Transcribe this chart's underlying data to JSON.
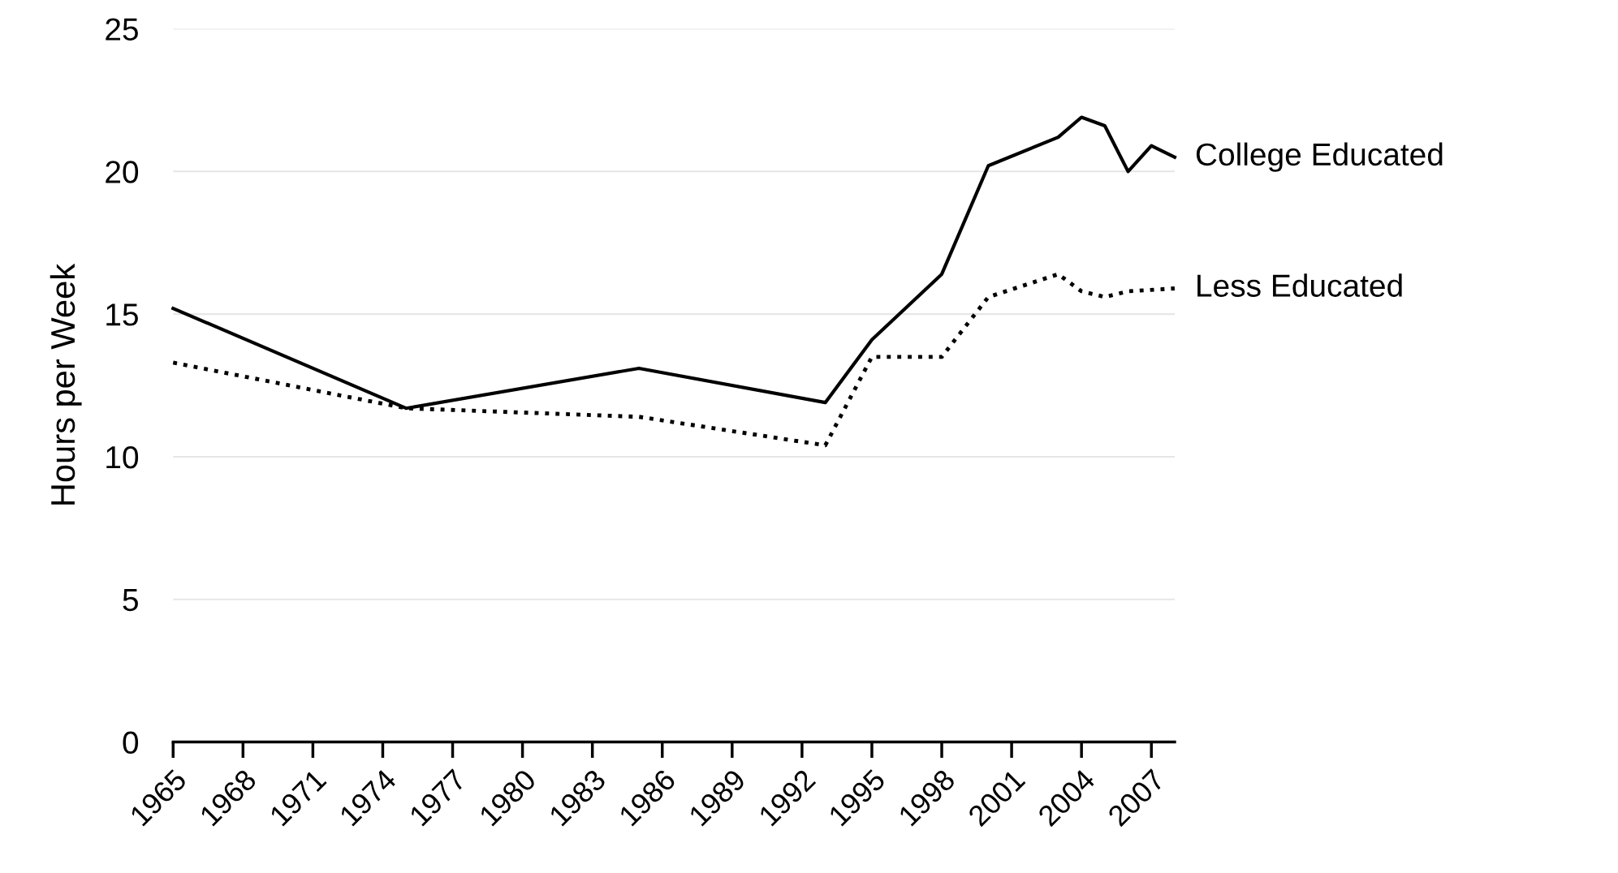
{
  "chart_data": {
    "type": "line",
    "ylabel": "Hours per Week",
    "xlim": [
      1965,
      2008
    ],
    "ylim": [
      0,
      25
    ],
    "xticks": [
      1965,
      1968,
      1971,
      1974,
      1977,
      1980,
      1983,
      1986,
      1989,
      1992,
      1995,
      1998,
      2001,
      2004,
      2007
    ],
    "yticks": [
      0,
      5,
      10,
      15,
      20,
      25
    ],
    "grid": "y",
    "legend": false,
    "marker": "none",
    "series": [
      {
        "name": "College Educated",
        "color": "#000000",
        "line_style": "solid",
        "x": [
          1965,
          1975,
          1985,
          1993,
          1995,
          1998,
          2000,
          2003,
          2004,
          2005,
          2006,
          2007,
          2008
        ],
        "values": [
          15.2,
          11.7,
          13.1,
          11.9,
          14.1,
          16.4,
          20.2,
          21.2,
          21.9,
          21.6,
          20.0,
          20.9,
          20.5
        ]
      },
      {
        "name": "Less Educated",
        "color": "#000000",
        "line_style": "dotted",
        "x": [
          1965,
          1975,
          1985,
          1993,
          1995,
          1998,
          2000,
          2003,
          2004,
          2005,
          2006,
          2008
        ],
        "values": [
          13.3,
          11.7,
          11.4,
          10.4,
          13.5,
          13.5,
          15.6,
          16.4,
          15.8,
          15.6,
          15.8,
          15.9
        ]
      }
    ]
  }
}
